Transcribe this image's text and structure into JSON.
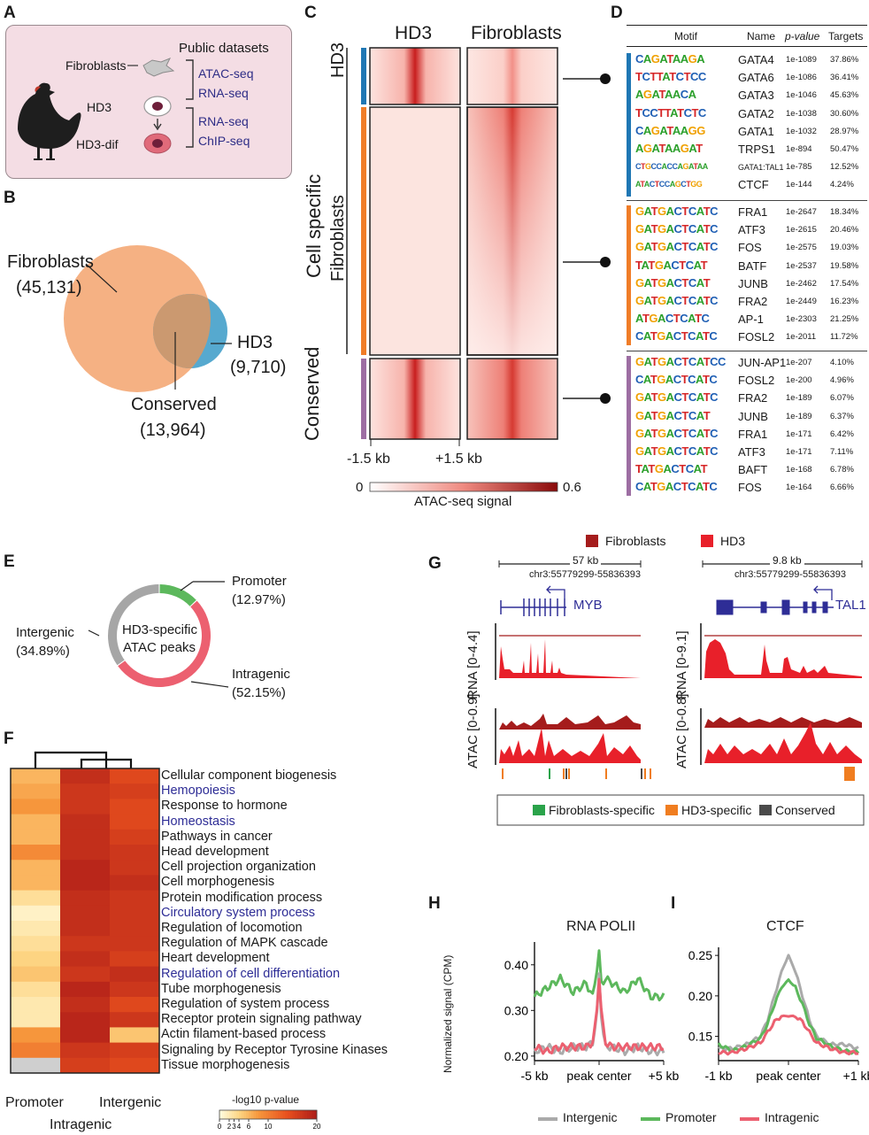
{
  "panels": {
    "A": "A",
    "B": "B",
    "C": "C",
    "D": "D",
    "E": "E",
    "F": "F",
    "G": "G",
    "H": "H",
    "I": "I"
  },
  "panelA": {
    "public_datasets": "Public datasets",
    "fibroblasts": "Fibroblasts",
    "hd3": "HD3",
    "hd3dif": "HD3-dif",
    "atac": "ATAC-seq",
    "rna1": "RNA-seq",
    "rna2": "RNA-seq",
    "chip": "ChIP-seq",
    "colors": {
      "bg": "#f4dde4",
      "text_blue": "#2e2d86"
    }
  },
  "panelB": {
    "fib_label": "Fibroblasts",
    "fib_count": "(45,131)",
    "hd3_label": "HD3",
    "hd3_count": "(9,710)",
    "cons_label": "Conserved",
    "cons_count": "(13,964)",
    "colors": {
      "fib": "#f5b183",
      "hd3": "#56a9cf"
    }
  },
  "panelC": {
    "col1": "HD3",
    "col2": "Fibroblasts",
    "row_hd3": "HD3",
    "row_fib": "Fibroblasts",
    "row_cons": "Conserved",
    "cell_specific": "Cell specific",
    "x_left": "-1.5 kb",
    "x_right": "+1.5 kb",
    "scale_min": "0",
    "scale_max": "0.6",
    "scale_title": "ATAC-seq signal",
    "colors": {
      "hd3": "#1f77b4",
      "fib": "#f07d28",
      "cons": "#9d6ea3",
      "heat": "#c81e1e"
    }
  },
  "panelD": {
    "headers": {
      "motif": "Motif",
      "name": "Name",
      "pvalue": "p-value",
      "targets": "Targets"
    },
    "groups": [
      {
        "rows": [
          {
            "logo": "CAGATAAGA",
            "name": "GATA4",
            "p": "1e-1089",
            "t": "37.86%"
          },
          {
            "logo": "TCTTATCTCC",
            "name": "GATA6",
            "p": "1e-1086",
            "t": "36.41%"
          },
          {
            "logo": "AGATAACA",
            "name": "GATA3",
            "p": "1e-1046",
            "t": "45.63%"
          },
          {
            "logo": "TCCTTATCTC",
            "name": "GATA2",
            "p": "1e-1038",
            "t": "30.60%"
          },
          {
            "logo": "CAGATAAGG",
            "name": "GATA1",
            "p": "1e-1032",
            "t": "28.97%"
          },
          {
            "logo": "AGATAAGAT",
            "name": "TRPS1",
            "p": "1e-894",
            "t": "50.47%"
          },
          {
            "logo": "CTGCCACCAGATAA",
            "name": "GATA1:TAL1",
            "p": "1e-785",
            "t": "12.52%"
          },
          {
            "logo": "ATACTCCAGCTGG",
            "name": "CTCF",
            "p": "1e-144",
            "t": "4.24%"
          }
        ]
      },
      {
        "rows": [
          {
            "logo": "GATGACTCATC",
            "name": "FRA1",
            "p": "1e-2647",
            "t": "18.34%"
          },
          {
            "logo": "GATGACTCATC",
            "name": "ATF3",
            "p": "1e-2615",
            "t": "20.46%"
          },
          {
            "logo": "GATGACTCATC",
            "name": "FOS",
            "p": "1e-2575",
            "t": "19.03%"
          },
          {
            "logo": "TATGACTCAT",
            "name": "BATF",
            "p": "1e-2537",
            "t": "19.58%"
          },
          {
            "logo": "GATGACTCAT",
            "name": "JUNB",
            "p": "1e-2462",
            "t": "17.54%"
          },
          {
            "logo": "GATGACTCATC",
            "name": "FRA2",
            "p": "1e-2449",
            "t": "16.23%"
          },
          {
            "logo": "ATGACTCATC",
            "name": "AP-1",
            "p": "1e-2303",
            "t": "21.25%"
          },
          {
            "logo": "CATGACTCATC",
            "name": "FOSL2",
            "p": "1e-2011",
            "t": "11.72%"
          }
        ]
      },
      {
        "rows": [
          {
            "logo": "GATGACTCATCC",
            "name": "JUN-AP1",
            "p": "1e-207",
            "t": "4.10%"
          },
          {
            "logo": "CATGACTCATC",
            "name": "FOSL2",
            "p": "1e-200",
            "t": "4.96%"
          },
          {
            "logo": "GATGACTCATC",
            "name": "FRA2",
            "p": "1e-189",
            "t": "6.07%"
          },
          {
            "logo": "GATGACTCAT",
            "name": "JUNB",
            "p": "1e-189",
            "t": "6.37%"
          },
          {
            "logo": "GATGACTCATC",
            "name": "FRA1",
            "p": "1e-171",
            "t": "6.42%"
          },
          {
            "logo": "GATGACTCATC",
            "name": "ATF3",
            "p": "1e-171",
            "t": "7.11%"
          },
          {
            "logo": "TATGACTCAT",
            "name": "BAFT",
            "p": "1e-168",
            "t": "6.78%"
          },
          {
            "logo": "CATGACTCATC",
            "name": "FOS",
            "p": "1e-164",
            "t": "6.66%"
          }
        ]
      }
    ],
    "colors": {
      "A": "#2ca02c",
      "C": "#1f5fb4",
      "G": "#f0a000",
      "T": "#d62728"
    }
  },
  "panelE": {
    "center_line1": "HD3-specific",
    "center_line2": "ATAC peaks",
    "promoter": "Promoter",
    "promoter_pct": "(12.97%)",
    "intergenic": "Intergenic",
    "intergenic_pct": "(34.89%)",
    "intragenic": "Intragenic",
    "intragenic_pct": "(52.15%)",
    "values": {
      "promoter": 12.97,
      "intragenic": 52.15,
      "intergenic": 34.89
    },
    "colors": {
      "promoter": "#5cb85c",
      "intragenic": "#ec6070",
      "intergenic": "#a6a6a6"
    }
  },
  "panelF": {
    "terms": [
      {
        "label": "Cellular component biogenesis",
        "highlight": false
      },
      {
        "label": "Hemopoiesis",
        "highlight": true
      },
      {
        "label": "Response to hormone",
        "highlight": false
      },
      {
        "label": "Homeostasis",
        "highlight": true
      },
      {
        "label": "Pathways in cancer",
        "highlight": false
      },
      {
        "label": "Head development",
        "highlight": false
      },
      {
        "label": "Cell projection organization",
        "highlight": false
      },
      {
        "label": "Cell morphogenesis",
        "highlight": false
      },
      {
        "label": "Protein modification process",
        "highlight": false
      },
      {
        "label": "Circulatory system process",
        "highlight": true
      },
      {
        "label": "Regulation of locomotion",
        "highlight": false
      },
      {
        "label": "Regulation of MAPK cascade",
        "highlight": false
      },
      {
        "label": "Heart development",
        "highlight": false
      },
      {
        "label": "Regulation of cell differentiation",
        "highlight": true
      },
      {
        "label": "Tube morphogenesis",
        "highlight": false
      },
      {
        "label": "Regulation of system process",
        "highlight": false
      },
      {
        "label": "Receptor protein signaling pathway",
        "highlight": false
      },
      {
        "label": "Actin filament-based process",
        "highlight": false
      },
      {
        "label": "Signaling by Receptor Tyrosine Kinases",
        "highlight": false
      },
      {
        "label": "Tissue morphogenesis",
        "highlight": false
      }
    ],
    "columns": [
      "Promoter",
      "Intragenic",
      "Intergenic"
    ],
    "matrix": [
      [
        6,
        18,
        15
      ],
      [
        7,
        17,
        16
      ],
      [
        8,
        17,
        15
      ],
      [
        6,
        18,
        15
      ],
      [
        6,
        18,
        16
      ],
      [
        9,
        18,
        17
      ],
      [
        6,
        19,
        17
      ],
      [
        6,
        19,
        18
      ],
      [
        3,
        18,
        17
      ],
      [
        1,
        18,
        17
      ],
      [
        2,
        18,
        17
      ],
      [
        3,
        17,
        17
      ],
      [
        4,
        18,
        16
      ],
      [
        5,
        17,
        18
      ],
      [
        3,
        19,
        17
      ],
      [
        2,
        18,
        15
      ],
      [
        2,
        19,
        17
      ],
      [
        8,
        19,
        5
      ],
      [
        10,
        17,
        16
      ],
      [
        0,
        16,
        15
      ]
    ],
    "legend_title": "-log10 p-value",
    "legend_ticks": [
      "0",
      "2",
      "3",
      "4",
      "6",
      "10",
      "20"
    ],
    "legend_values": [
      0,
      2,
      3,
      4,
      6,
      10,
      20
    ],
    "colors": {
      "highlight": "#2e2d96",
      "text": "#1a1a1a"
    }
  },
  "panelG": {
    "legend_fib": "Fibroblasts",
    "legend_hd3": "HD3",
    "left_scale": "57 kb",
    "right_scale": "9.8 kb",
    "left_locus": "chr3:55779299-55836393",
    "right_locus": "chr3:55779299-55836393",
    "gene_left": "MYB",
    "gene_right": "TAL1",
    "rna_left": "RNA [0-4.4]",
    "rna_right": "RNA [0-9.1]",
    "atac_left": "ATAC [0-0.9]",
    "atac_right": "ATAC [0-0.8]",
    "peak_legend": [
      "Fibroblasts-specific",
      "HD3-specific",
      "Conserved"
    ],
    "colors": {
      "fib": "#a51c1c",
      "hd3": "#e8202a",
      "fspec": "#2aa34a",
      "hspec": "#f07d20",
      "cons": "#4a4a4a",
      "gene": "#2e2d96"
    }
  },
  "chart_data": [
    {
      "type": "line",
      "title": "RNA POLII",
      "xlabel": "",
      "ylabel": "Normalized signal (CPM)",
      "x_ticks": [
        "-5 kb",
        "peak center",
        "+5 kb"
      ],
      "y_ticks": [
        "0.20",
        "0.30",
        "0.40"
      ],
      "ylim": [
        0.19,
        0.45
      ],
      "x": [
        -5,
        -4,
        -3,
        -2,
        -1,
        -0.5,
        -0.2,
        0,
        0.2,
        0.5,
        1,
        2,
        3,
        4,
        5
      ],
      "series": [
        {
          "name": "Promoter",
          "values": [
            0.33,
            0.35,
            0.37,
            0.34,
            0.36,
            0.33,
            0.38,
            0.43,
            0.35,
            0.37,
            0.36,
            0.34,
            0.37,
            0.33,
            0.33
          ]
        },
        {
          "name": "Intergenic",
          "values": [
            0.21,
            0.22,
            0.21,
            0.22,
            0.22,
            0.23,
            0.28,
            0.38,
            0.27,
            0.22,
            0.22,
            0.21,
            0.22,
            0.21,
            0.21
          ]
        },
        {
          "name": "Intragenic",
          "values": [
            0.22,
            0.21,
            0.22,
            0.22,
            0.22,
            0.23,
            0.29,
            0.37,
            0.29,
            0.23,
            0.22,
            0.22,
            0.22,
            0.22,
            0.22
          ]
        }
      ]
    },
    {
      "type": "line",
      "title": "CTCF",
      "xlabel": "",
      "ylabel": "",
      "x_ticks": [
        "-1 kb",
        "peak center",
        "+1 kb"
      ],
      "y_ticks": [
        "0.15",
        "0.20",
        "0.25"
      ],
      "ylim": [
        0.12,
        0.26
      ],
      "x": [
        -1,
        -0.8,
        -0.6,
        -0.4,
        -0.3,
        -0.2,
        -0.1,
        0,
        0.1,
        0.2,
        0.3,
        0.4,
        0.6,
        0.8,
        1
      ],
      "series": [
        {
          "name": "Intergenic",
          "values": [
            0.135,
            0.135,
            0.14,
            0.15,
            0.17,
            0.2,
            0.23,
            0.25,
            0.23,
            0.2,
            0.17,
            0.15,
            0.14,
            0.14,
            0.135
          ]
        },
        {
          "name": "Promoter",
          "values": [
            0.14,
            0.132,
            0.138,
            0.148,
            0.165,
            0.19,
            0.21,
            0.22,
            0.21,
            0.19,
            0.165,
            0.148,
            0.138,
            0.132,
            0.13
          ]
        },
        {
          "name": "Intragenic",
          "values": [
            0.13,
            0.13,
            0.135,
            0.142,
            0.155,
            0.168,
            0.175,
            0.175,
            0.175,
            0.168,
            0.155,
            0.142,
            0.135,
            0.13,
            0.13
          ]
        }
      ]
    }
  ],
  "panelHI_legend": {
    "intergenic": "Intergenic",
    "promoter": "Promoter",
    "intragenic": "Intragenic",
    "colors": {
      "intergenic": "#aaaaaa",
      "promoter": "#5cb85c",
      "intragenic": "#ec6070"
    }
  }
}
